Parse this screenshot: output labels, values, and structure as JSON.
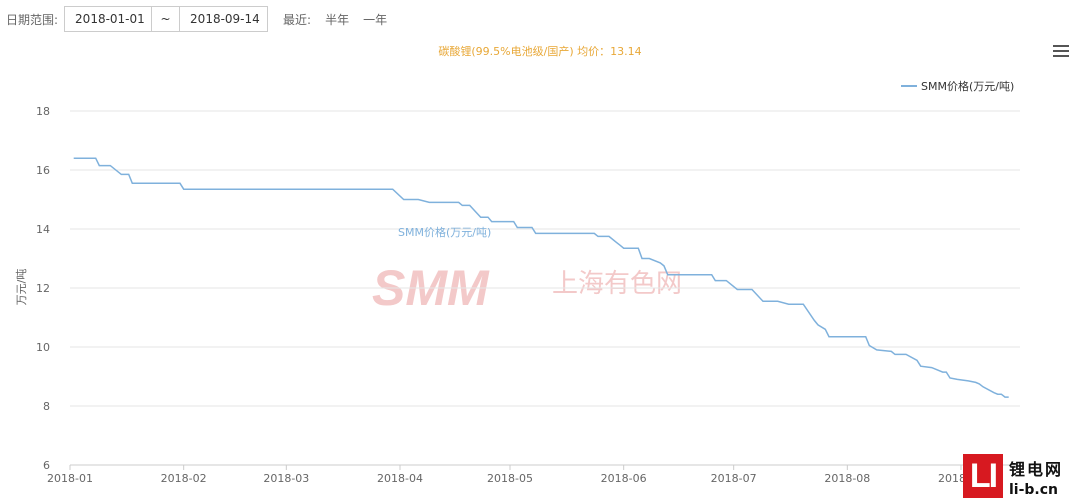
{
  "toolbar": {
    "range_label": "日期范围:",
    "start_date": "2018-01-01",
    "separator": "~",
    "end_date": "2018-09-14",
    "recent_label": "最近:",
    "preset_half_year": "半年",
    "preset_one_year": "一年"
  },
  "chart_data": {
    "type": "line",
    "title": "碳酸锂(99.5%电池级/国产) 均价：13.14",
    "xlabel": "",
    "ylabel": "万元/吨",
    "ylim": [
      6,
      18
    ],
    "yticks": [
      6,
      8,
      10,
      12,
      14,
      16,
      18
    ],
    "xticks": [
      "2018-01",
      "2018-02",
      "2018-03",
      "2018-04",
      "2018-05",
      "2018-06",
      "2018-07",
      "2018-08",
      "2018-09"
    ],
    "grid": true,
    "legend": "top-right",
    "series_color": "#7fb1dc",
    "series": [
      {
        "name": "SMM价格(万元/吨)",
        "points": [
          [
            "2018-01-02",
            16.4
          ],
          [
            "2018-01-08",
            16.4
          ],
          [
            "2018-01-09",
            16.15
          ],
          [
            "2018-01-12",
            16.15
          ],
          [
            "2018-01-15",
            15.85
          ],
          [
            "2018-01-17",
            15.85
          ],
          [
            "2018-01-18",
            15.55
          ],
          [
            "2018-01-31",
            15.55
          ],
          [
            "2018-02-01",
            15.35
          ],
          [
            "2018-03-30",
            15.35
          ],
          [
            "2018-04-02",
            15.0
          ],
          [
            "2018-04-06",
            15.0
          ],
          [
            "2018-04-09",
            14.9
          ],
          [
            "2018-04-17",
            14.9
          ],
          [
            "2018-04-18",
            14.8
          ],
          [
            "2018-04-20",
            14.8
          ],
          [
            "2018-04-23",
            14.4
          ],
          [
            "2018-04-25",
            14.4
          ],
          [
            "2018-04-26",
            14.25
          ],
          [
            "2018-05-02",
            14.25
          ],
          [
            "2018-05-03",
            14.05
          ],
          [
            "2018-05-07",
            14.05
          ],
          [
            "2018-05-08",
            13.85
          ],
          [
            "2018-05-24",
            13.85
          ],
          [
            "2018-05-25",
            13.75
          ],
          [
            "2018-05-28",
            13.75
          ],
          [
            "2018-05-30",
            13.55
          ],
          [
            "2018-05-31",
            13.45
          ],
          [
            "2018-06-01",
            13.35
          ],
          [
            "2018-06-05",
            13.35
          ],
          [
            "2018-06-06",
            13.0
          ],
          [
            "2018-06-08",
            13.0
          ],
          [
            "2018-06-11",
            12.85
          ],
          [
            "2018-06-12",
            12.75
          ],
          [
            "2018-06-13",
            12.45
          ],
          [
            "2018-06-25",
            12.45
          ],
          [
            "2018-06-26",
            12.25
          ],
          [
            "2018-06-29",
            12.25
          ],
          [
            "2018-07-02",
            11.95
          ],
          [
            "2018-07-06",
            11.95
          ],
          [
            "2018-07-09",
            11.55
          ],
          [
            "2018-07-13",
            11.55
          ],
          [
            "2018-07-16",
            11.45
          ],
          [
            "2018-07-20",
            11.45
          ],
          [
            "2018-07-23",
            10.9
          ],
          [
            "2018-07-24",
            10.75
          ],
          [
            "2018-07-26",
            10.6
          ],
          [
            "2018-07-27",
            10.35
          ],
          [
            "2018-08-06",
            10.35
          ],
          [
            "2018-08-07",
            10.05
          ],
          [
            "2018-08-09",
            9.9
          ],
          [
            "2018-08-13",
            9.85
          ],
          [
            "2018-08-14",
            9.75
          ],
          [
            "2018-08-17",
            9.75
          ],
          [
            "2018-08-20",
            9.55
          ],
          [
            "2018-08-21",
            9.35
          ],
          [
            "2018-08-24",
            9.3
          ],
          [
            "2018-08-27",
            9.15
          ],
          [
            "2018-08-28",
            9.15
          ],
          [
            "2018-08-29",
            8.95
          ],
          [
            "2018-08-31",
            8.9
          ],
          [
            "2018-09-03",
            8.85
          ],
          [
            "2018-09-05",
            8.8
          ],
          [
            "2018-09-06",
            8.75
          ],
          [
            "2018-09-07",
            8.65
          ],
          [
            "2018-09-10",
            8.45
          ],
          [
            "2018-09-11",
            8.4
          ],
          [
            "2018-09-12",
            8.4
          ],
          [
            "2018-09-13",
            8.3
          ],
          [
            "2018-09-14",
            8.3
          ]
        ]
      }
    ],
    "annotation": "SMM价格(万元/吨)"
  },
  "watermark": {
    "logo_text": "SMM",
    "logo_cn": "上海有色网",
    "badge_letters": "LI",
    "site_cn": "锂电网",
    "site_url": "li-b.cn"
  }
}
